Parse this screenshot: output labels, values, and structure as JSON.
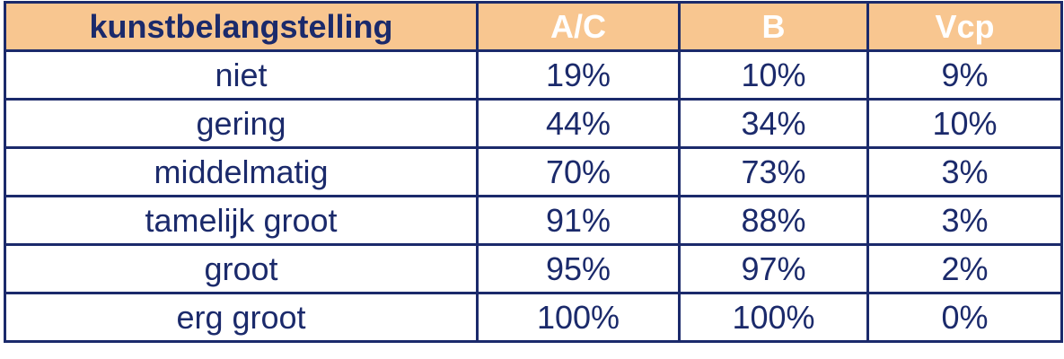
{
  "table": {
    "header": [
      "kunstbelangstelling",
      "A/C",
      "B",
      "Vcp"
    ],
    "rows": [
      [
        "niet",
        "19%",
        "10%",
        "9%"
      ],
      [
        "gering",
        "44%",
        "34%",
        "10%"
      ],
      [
        "middelmatig",
        "70%",
        "73%",
        "3%"
      ],
      [
        "tamelijk groot",
        "91%",
        "88%",
        "3%"
      ],
      [
        "groot",
        "95%",
        "97%",
        "2%"
      ],
      [
        "erg groot",
        "100%",
        "100%",
        "0%"
      ]
    ]
  }
}
